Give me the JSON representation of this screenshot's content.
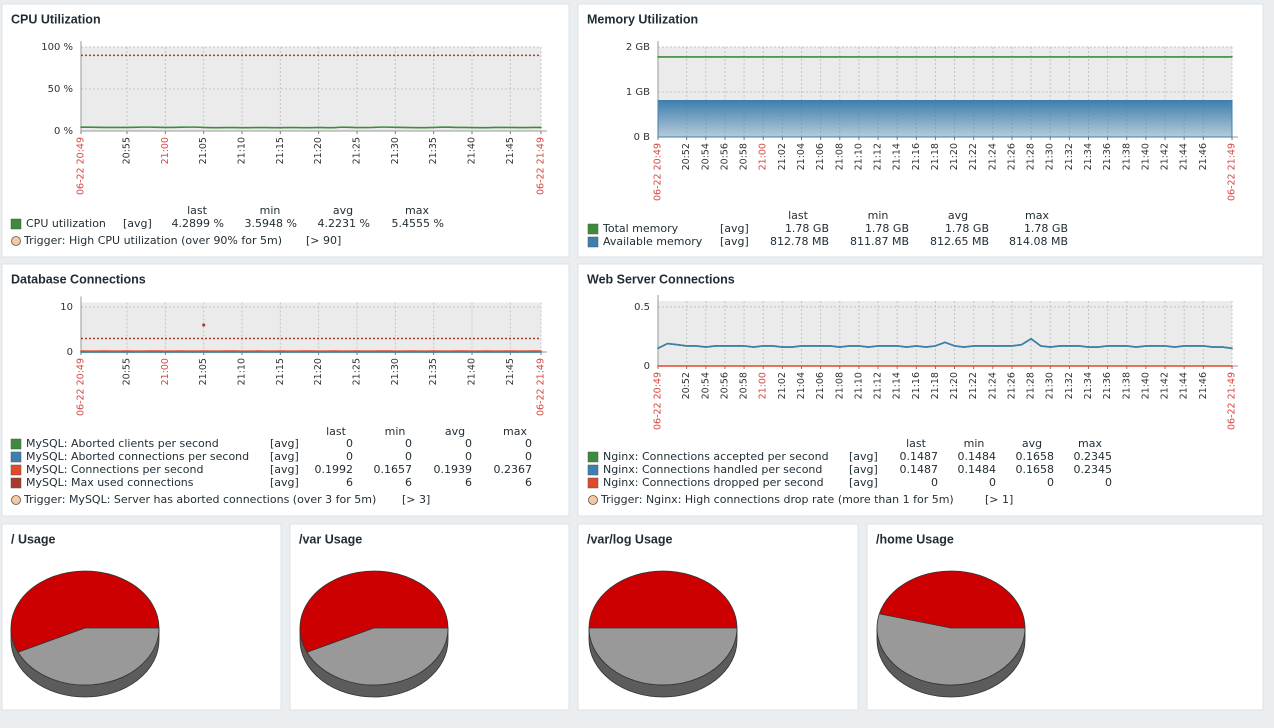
{
  "chart_data": [
    {
      "type": "line",
      "title": "CPU Utilization",
      "categories": [
        "06-22 20:49",
        null,
        null,
        null,
        null,
        null,
        "20:55",
        null,
        null,
        null,
        null,
        "21:00",
        null,
        null,
        null,
        null,
        "21:05",
        null,
        null,
        null,
        null,
        "21:10",
        null,
        null,
        null,
        null,
        "21:15",
        null,
        null,
        null,
        null,
        "21:20",
        null,
        null,
        null,
        null,
        "21:25",
        null,
        null,
        null,
        null,
        "21:30",
        null,
        null,
        null,
        null,
        "21:35",
        null,
        null,
        null,
        null,
        "21:40",
        null,
        null,
        null,
        null,
        "21:45",
        null,
        null,
        null,
        "06-22 21:49"
      ],
      "ylim": [
        0,
        100
      ],
      "yticks": [
        {
          "value": 0,
          "label": "0 %"
        },
        {
          "value": 50,
          "label": "50 %"
        },
        {
          "value": 100,
          "label": "100 %"
        }
      ],
      "grid": true,
      "legend_columns": [
        "last",
        "min",
        "avg",
        "max"
      ],
      "series": [
        {
          "name": "CPU utilization",
          "func": "[avg]",
          "color": "#3c8c3c",
          "values": [
            4.5,
            4.6,
            4.4,
            4.3,
            4.3,
            4.2,
            4.2,
            4.4,
            4.6,
            4.6,
            4.4,
            4.3,
            4.2,
            4.5,
            4.6,
            4.6,
            4.2,
            4.0,
            4.0,
            4.1,
            4.1,
            4.0,
            4.0,
            4.1,
            4.1,
            4.0,
            4.0,
            4.1,
            4.1,
            4.0,
            4.0,
            4.2,
            4.0,
            4.0,
            4.6,
            4.4,
            4.1,
            4.1,
            4.2,
            4.6,
            4.6,
            4.4,
            4.2,
            4.1,
            4.0,
            4.0,
            4.3,
            4.5,
            4.5,
            4.3,
            4.2,
            4.1,
            4.0,
            4.0,
            4.3,
            4.3,
            4.2,
            4.1,
            4.1,
            4.2,
            4.3
          ],
          "stats": [
            "4.2899 %",
            "3.5948 %",
            "4.2231 %",
            "5.4555 %"
          ]
        }
      ],
      "trigger": {
        "name": "Trigger: High CPU utilization (over 90% for 5m)",
        "label": "[> 90]",
        "value": 90,
        "color": "#a83a2a"
      }
    },
    {
      "type": "line",
      "title": "Memory Utilization",
      "categories": [
        "06-22 20:49",
        null,
        null,
        "20:52",
        null,
        "20:54",
        null,
        "20:56",
        null,
        "20:58",
        null,
        "21:00",
        null,
        "21:02",
        null,
        "21:04",
        null,
        "21:06",
        null,
        "21:08",
        null,
        "21:10",
        null,
        "21:12",
        null,
        "21:14",
        null,
        "21:16",
        null,
        "21:18",
        null,
        "21:20",
        null,
        "21:22",
        null,
        "21:24",
        null,
        "21:26",
        null,
        "21:28",
        null,
        "21:30",
        null,
        "21:32",
        null,
        "21:34",
        null,
        "21:36",
        null,
        "21:38",
        null,
        "21:40",
        null,
        "21:42",
        null,
        "21:44",
        null,
        "21:46",
        null,
        null,
        "06-22 21:49"
      ],
      "ylim": [
        0,
        2
      ],
      "yticks": [
        {
          "value": 0,
          "label": "0 B"
        },
        {
          "value": 1,
          "label": "1 GB"
        },
        {
          "value": 2,
          "label": "2 GB"
        }
      ],
      "grid": true,
      "legend_columns": [
        "last",
        "min",
        "avg",
        "max"
      ],
      "series": [
        {
          "name": "Total memory",
          "func": "[avg]",
          "color": "#3c8c3c",
          "values": [
            1.78,
            1.78,
            1.78,
            1.78,
            1.78,
            1.78,
            1.78,
            1.78,
            1.78,
            1.78,
            1.78,
            1.78,
            1.78,
            1.78,
            1.78,
            1.78,
            1.78,
            1.78,
            1.78,
            1.78,
            1.78,
            1.78,
            1.78,
            1.78,
            1.78,
            1.78,
            1.78,
            1.78,
            1.78,
            1.78,
            1.78,
            1.78,
            1.78,
            1.78,
            1.78,
            1.78,
            1.78,
            1.78,
            1.78,
            1.78,
            1.78,
            1.78,
            1.78,
            1.78,
            1.78,
            1.78,
            1.78,
            1.78,
            1.78,
            1.78,
            1.78,
            1.78,
            1.78,
            1.78,
            1.78,
            1.78,
            1.78,
            1.78,
            1.78,
            1.78,
            1.78
          ],
          "stats": [
            "1.78 GB",
            "1.78 GB",
            "1.78 GB",
            "1.78 GB"
          ]
        },
        {
          "name": "Available memory",
          "func": "[avg]",
          "color": "#3d7fae",
          "area": true,
          "values": [
            0.81,
            0.81,
            0.81,
            0.81,
            0.81,
            0.81,
            0.81,
            0.81,
            0.81,
            0.81,
            0.81,
            0.81,
            0.81,
            0.81,
            0.81,
            0.81,
            0.81,
            0.81,
            0.81,
            0.81,
            0.81,
            0.81,
            0.81,
            0.81,
            0.81,
            0.81,
            0.81,
            0.81,
            0.81,
            0.81,
            0.81,
            0.81,
            0.81,
            0.81,
            0.81,
            0.81,
            0.81,
            0.81,
            0.81,
            0.81,
            0.81,
            0.81,
            0.81,
            0.81,
            0.81,
            0.81,
            0.81,
            0.81,
            0.81,
            0.81,
            0.81,
            0.81,
            0.81,
            0.81,
            0.81,
            0.81,
            0.81,
            0.81,
            0.81,
            0.81,
            0.81
          ],
          "stats": [
            "812.78 MB",
            "811.87 MB",
            "812.65 MB",
            "814.08 MB"
          ]
        }
      ]
    },
    {
      "type": "line",
      "title": "Database Connections",
      "categories": [
        "06-22 20:49",
        null,
        null,
        null,
        null,
        null,
        "20:55",
        null,
        null,
        null,
        null,
        "21:00",
        null,
        null,
        null,
        null,
        "21:05",
        null,
        null,
        null,
        null,
        "21:10",
        null,
        null,
        null,
        null,
        "21:15",
        null,
        null,
        null,
        null,
        "21:20",
        null,
        null,
        null,
        null,
        "21:25",
        null,
        null,
        null,
        null,
        "21:30",
        null,
        null,
        null,
        null,
        "21:35",
        null,
        null,
        null,
        null,
        "21:40",
        null,
        null,
        null,
        null,
        "21:45",
        null,
        null,
        null,
        "06-22 21:49"
      ],
      "ylim": [
        0,
        11
      ],
      "yticks": [
        0,
        10
      ],
      "grid": true,
      "legend_columns": [
        "last",
        "min",
        "avg",
        "max"
      ],
      "series": [
        {
          "name": "MySQL: Aborted clients per second",
          "func": "[avg]",
          "color": "#3c8c3c",
          "values": [
            0,
            0,
            0,
            0,
            0,
            0,
            0,
            0,
            0,
            0,
            0,
            0,
            0,
            0,
            0,
            0,
            0,
            0,
            0,
            0,
            0,
            0,
            0,
            0,
            0,
            0,
            0,
            0,
            0,
            0,
            0,
            0,
            0,
            0,
            0,
            0,
            0,
            0,
            0,
            0,
            0,
            0,
            0,
            0,
            0,
            0,
            0,
            0,
            0,
            0,
            0,
            0,
            0,
            0,
            0,
            0,
            0,
            0,
            0,
            0,
            0
          ],
          "stats": [
            "0",
            "0",
            "0",
            "0"
          ]
        },
        {
          "name": "MySQL: Aborted connections per second",
          "func": "[avg]",
          "color": "#3d7fae",
          "values": [
            0,
            0,
            0,
            0,
            0,
            0,
            0,
            0,
            0,
            0,
            0,
            0,
            0,
            0,
            0,
            0,
            0,
            0,
            0,
            0,
            0,
            0,
            0,
            0,
            0,
            0,
            0,
            0,
            0,
            0,
            0,
            0,
            0,
            0,
            0,
            0,
            0,
            0,
            0,
            0,
            0,
            0,
            0,
            0,
            0,
            0,
            0,
            0,
            0,
            0,
            0,
            0,
            0,
            0,
            0,
            0,
            0,
            0,
            0,
            0,
            0
          ],
          "stats": [
            "0",
            "0",
            "0",
            "0"
          ]
        },
        {
          "name": "MySQL: Connections per second",
          "func": "[avg]",
          "color": "#e2492b",
          "values": [
            0.2,
            0.19,
            0.19,
            0.2,
            0.18,
            0.19,
            0.2,
            0.19,
            0.19,
            0.2,
            0.2,
            0.19,
            0.19,
            0.2,
            0.18,
            0.19,
            0.2,
            0.19,
            0.19,
            0.2,
            0.2,
            0.19,
            0.19,
            0.2,
            0.18,
            0.19,
            0.2,
            0.19,
            0.19,
            0.2,
            0.2,
            0.19,
            0.19,
            0.2,
            0.18,
            0.19,
            0.2,
            0.19,
            0.19,
            0.2,
            0.2,
            0.19,
            0.19,
            0.2,
            0.18,
            0.19,
            0.2,
            0.19,
            0.19,
            0.2,
            0.2,
            0.19,
            0.19,
            0.2,
            0.18,
            0.19,
            0.2,
            0.19,
            0.19,
            0.2,
            0.2
          ],
          "stats": [
            "0.1992",
            "0.1657",
            "0.1939",
            "0.2367"
          ]
        },
        {
          "name": "MySQL: Max used connections",
          "func": "[avg]",
          "color": "#a8392a",
          "values": [
            null,
            null,
            null,
            null,
            null,
            null,
            null,
            null,
            null,
            null,
            null,
            null,
            null,
            null,
            null,
            null,
            6,
            null,
            null,
            null,
            null,
            null,
            null,
            null,
            null,
            null,
            null,
            null,
            null,
            null,
            null,
            null,
            null,
            null,
            null,
            null,
            null,
            null,
            null,
            null,
            null,
            null,
            null,
            null,
            null,
            null,
            null,
            null,
            null,
            null,
            null,
            null,
            null,
            null,
            null,
            null,
            null,
            null,
            null,
            null,
            null
          ],
          "stats": [
            "6",
            "6",
            "6",
            "6"
          ]
        }
      ],
      "trigger": {
        "name": "Trigger: MySQL: Server has aborted connections (over 3 for 5m)",
        "label": "[> 3]",
        "value": 3,
        "color": "#a83a2a"
      }
    },
    {
      "type": "line",
      "title": "Web Server Connections",
      "categories": [
        "06-22 20:49",
        null,
        null,
        "20:52",
        null,
        "20:54",
        null,
        "20:56",
        null,
        "20:58",
        null,
        "21:00",
        null,
        "21:02",
        null,
        "21:04",
        null,
        "21:06",
        null,
        "21:08",
        null,
        "21:10",
        null,
        "21:12",
        null,
        "21:14",
        null,
        "21:16",
        null,
        "21:18",
        null,
        "21:20",
        null,
        "21:22",
        null,
        "21:24",
        null,
        "21:26",
        null,
        "21:28",
        null,
        "21:30",
        null,
        "21:32",
        null,
        "21:34",
        null,
        "21:36",
        null,
        "21:38",
        null,
        "21:40",
        null,
        "21:42",
        null,
        "21:44",
        null,
        "21:46",
        null,
        null,
        "06-22 21:49"
      ],
      "ylim": [
        0,
        0.55
      ],
      "yticks": [
        0,
        0.5
      ],
      "grid": true,
      "legend_columns": [
        "last",
        "min",
        "avg",
        "max"
      ],
      "series": [
        {
          "name": "Nginx: Connections accepted per second",
          "func": "[avg]",
          "color": "#3c8c3c",
          "values": [
            0.15,
            0.19,
            0.18,
            0.17,
            0.17,
            0.16,
            0.17,
            0.17,
            0.17,
            0.17,
            0.16,
            0.17,
            0.17,
            0.16,
            0.16,
            0.17,
            0.17,
            0.17,
            0.17,
            0.16,
            0.17,
            0.17,
            0.16,
            0.17,
            0.17,
            0.17,
            0.16,
            0.17,
            0.16,
            0.17,
            0.2,
            0.17,
            0.16,
            0.17,
            0.17,
            0.17,
            0.17,
            0.17,
            0.18,
            0.23,
            0.17,
            0.16,
            0.17,
            0.17,
            0.17,
            0.16,
            0.16,
            0.17,
            0.17,
            0.17,
            0.16,
            0.17,
            0.17,
            0.17,
            0.16,
            0.17,
            0.17,
            0.17,
            0.16,
            0.16,
            0.15
          ],
          "stats": [
            "0.1487",
            "0.1484",
            "0.1658",
            "0.2345"
          ]
        },
        {
          "name": "Nginx: Connections handled per second",
          "func": "[avg]",
          "color": "#3d7fae",
          "values": [
            0.15,
            0.19,
            0.18,
            0.17,
            0.17,
            0.16,
            0.17,
            0.17,
            0.17,
            0.17,
            0.16,
            0.17,
            0.17,
            0.16,
            0.16,
            0.17,
            0.17,
            0.17,
            0.17,
            0.16,
            0.17,
            0.17,
            0.16,
            0.17,
            0.17,
            0.17,
            0.16,
            0.17,
            0.16,
            0.17,
            0.2,
            0.17,
            0.16,
            0.17,
            0.17,
            0.17,
            0.17,
            0.17,
            0.18,
            0.23,
            0.17,
            0.16,
            0.17,
            0.17,
            0.17,
            0.16,
            0.16,
            0.17,
            0.17,
            0.17,
            0.16,
            0.17,
            0.17,
            0.17,
            0.16,
            0.17,
            0.17,
            0.17,
            0.16,
            0.16,
            0.15
          ],
          "stats": [
            "0.1487",
            "0.1484",
            "0.1658",
            "0.2345"
          ]
        },
        {
          "name": "Nginx: Connections dropped per second",
          "func": "[avg]",
          "color": "#e2492b",
          "values": [
            0,
            0,
            0,
            0,
            0,
            0,
            0,
            0,
            0,
            0,
            0,
            0,
            0,
            0,
            0,
            0,
            0,
            0,
            0,
            0,
            0,
            0,
            0,
            0,
            0,
            0,
            0,
            0,
            0,
            0,
            0,
            0,
            0,
            0,
            0,
            0,
            0,
            0,
            0,
            0,
            0,
            0,
            0,
            0,
            0,
            0,
            0,
            0,
            0,
            0,
            0,
            0,
            0,
            0,
            0,
            0,
            0,
            0,
            0,
            0,
            0
          ],
          "stats": [
            "0",
            "0",
            "0",
            "0"
          ]
        }
      ],
      "trigger": {
        "name": "Trigger: Nginx: High connections drop rate (more than 1 for 5m)",
        "label": "[> 1]",
        "value": 1,
        "color": "#a83a2a"
      }
    },
    {
      "type": "pie",
      "title": "/ Usage",
      "values": [
        57,
        43
      ],
      "colors": [
        "#cc0000",
        "#999999"
      ]
    },
    {
      "type": "pie",
      "title": "/var Usage",
      "values": [
        57,
        43
      ],
      "colors": [
        "#cc0000",
        "#999999"
      ]
    },
    {
      "type": "pie",
      "title": "/var/log Usage",
      "values": [
        50,
        50
      ],
      "colors": [
        "#cc0000",
        "#999999"
      ]
    },
    {
      "type": "pie",
      "title": "/home Usage",
      "values": [
        46,
        54
      ],
      "colors": [
        "#cc0000",
        "#999999"
      ]
    }
  ]
}
